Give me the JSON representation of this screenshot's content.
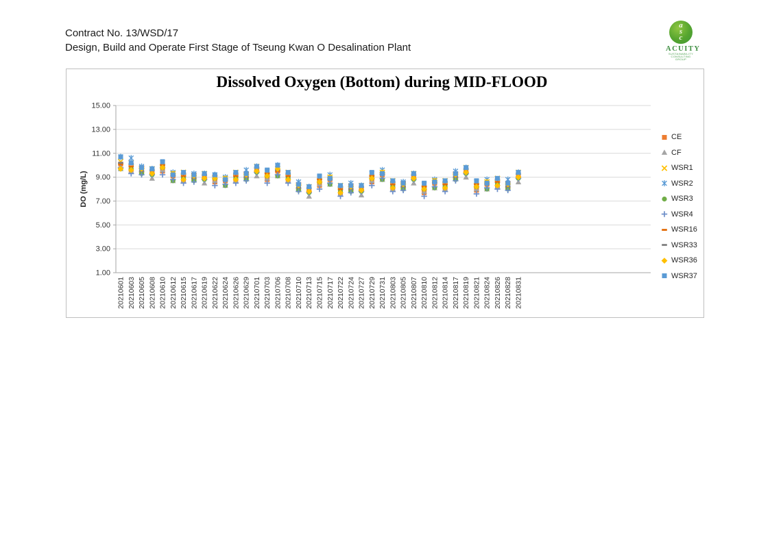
{
  "header": {
    "line1": "Contract No. 13/WSD/17",
    "line2": "Design, Build and Operate First Stage of Tseung Kwan O Desalination Plant"
  },
  "logo": {
    "monogram": "asc",
    "name": "ACUITY",
    "subline1": "SUSTAINABILITY",
    "subline2": "CONSULTING GROUP"
  },
  "chart_data": {
    "type": "scatter",
    "title": "Dissolved Oxygen (Bottom) during MID-FLOOD",
    "xlabel": "",
    "ylabel": "DO (mg/L)",
    "ylim": [
      1,
      15
    ],
    "ytick_labels": [
      "15.00",
      "13.00",
      "11.00",
      "9.00",
      "7.00",
      "5.00",
      "3.00",
      "1.00"
    ],
    "ytick_values": [
      15,
      13,
      11,
      9,
      7,
      5,
      3,
      1
    ],
    "grid": true,
    "legend_position": "right",
    "colors": {
      "grid": "#d9d9d9",
      "axis": "#a6a6a6",
      "box_border": "#bfbfbf",
      "tick_text": "#333333"
    },
    "categories": [
      "20210601",
      "20210603",
      "20210605",
      "20210608",
      "20210610",
      "20210612",
      "20210615",
      "20210617",
      "20210619",
      "20210622",
      "20210624",
      "20210626",
      "20210629",
      "20210701",
      "20210703",
      "20210706",
      "20210708",
      "20210710",
      "20210713",
      "20210715",
      "20210717",
      "20210722",
      "20210724",
      "20210727",
      "20210729",
      "20210731",
      "20210803",
      "20210805",
      "20210807",
      "20210810",
      "20210812",
      "20210814",
      "20210817",
      "20210819",
      "20210821",
      "20210824",
      "20210826",
      "20210828",
      "20210831"
    ],
    "series": [
      {
        "name": "CE",
        "marker": "square",
        "color": "#ED7D31",
        "values": [
          10.1,
          9.6,
          9.5,
          9.5,
          9.5,
          9.1,
          8.8,
          8.9,
          9.1,
          8.6,
          8.7,
          8.8,
          9.0,
          9.7,
          8.8,
          9.5,
          8.8,
          8.1,
          8.0,
          8.3,
          8.8,
          7.7,
          8.0,
          8.1,
          8.6,
          9.2,
          8.1,
          8.2,
          9.1,
          7.7,
          8.5,
          8.1,
          9.0,
          9.6,
          7.9,
          8.4,
          8.3,
          8.2,
          9.2
        ]
      },
      {
        "name": "CF",
        "marker": "triangle",
        "color": "#A5A5A5",
        "values": [
          9.7,
          9.5,
          9.5,
          8.9,
          9.6,
          8.7,
          8.7,
          8.9,
          8.5,
          8.7,
          8.3,
          8.7,
          9.0,
          9.1,
          8.9,
          9.1,
          8.7,
          8.1,
          7.4,
          8.4,
          8.4,
          7.6,
          8.0,
          7.5,
          8.7,
          8.8,
          8.0,
          8.2,
          8.5,
          7.8,
          8.1,
          8.0,
          9.0,
          9.0,
          8.0,
          8.0,
          8.2,
          8.2,
          8.6
        ]
      },
      {
        "name": "WSR1",
        "marker": "x",
        "color": "#FFC000",
        "values": [
          10.3,
          10.2,
          9.6,
          9.7,
          9.9,
          9.3,
          9.4,
          9.0,
          9.3,
          9.0,
          8.9,
          9.4,
          9.1,
          9.9,
          9.2,
          9.7,
          9.4,
          8.2,
          8.2,
          8.7,
          9.0,
          8.3,
          8.1,
          8.3,
          9.0,
          9.4,
          8.7,
          8.3,
          9.3,
          8.1,
          8.7,
          8.7,
          9.1,
          9.8,
          8.3,
          8.6,
          8.9,
          8.3,
          9.4
        ]
      },
      {
        "name": "WSR2",
        "marker": "star",
        "color": "#5B9BD5",
        "values": [
          10.7,
          10.6,
          9.9,
          9.7,
          10.2,
          9.4,
          9.2,
          9.3,
          9.3,
          9.2,
          9.0,
          9.2,
          9.6,
          9.9,
          9.5,
          10.0,
          9.2,
          8.6,
          8.2,
          9.0,
          9.2,
          8.1,
          8.5,
          8.3,
          9.3,
          9.6,
          8.5,
          8.6,
          9.3,
          8.4,
          8.8,
          8.5,
          9.5,
          9.8,
          8.6,
          8.8,
          8.7,
          8.8,
          9.4
        ]
      },
      {
        "name": "WSR3",
        "marker": "circle",
        "color": "#70AD47",
        "values": [
          9.7,
          9.7,
          9.3,
          9.2,
          9.8,
          8.7,
          8.9,
          8.7,
          8.8,
          8.9,
          8.3,
          8.9,
          8.8,
          9.4,
          9.1,
          9.1,
          8.9,
          7.9,
          7.7,
          8.6,
          8.4,
          7.8,
          7.8,
          7.8,
          8.9,
          8.8,
          8.2,
          8.0,
          8.8,
          8.0,
          8.1,
          8.2,
          8.8,
          9.3,
          8.2,
          8.0,
          8.4,
          8.0,
          8.9
        ]
      },
      {
        "name": "WSR4",
        "marker": "plus",
        "color": "#6E8FC9",
        "values": [
          9.8,
          9.3,
          9.2,
          9.2,
          9.2,
          8.8,
          8.5,
          8.6,
          8.8,
          8.3,
          8.4,
          8.5,
          8.7,
          9.4,
          8.5,
          9.2,
          8.5,
          7.8,
          7.7,
          8.0,
          8.5,
          7.4,
          7.7,
          7.8,
          8.3,
          8.9,
          7.8,
          7.9,
          8.8,
          7.4,
          8.2,
          7.8,
          8.7,
          9.3,
          7.6,
          8.1,
          8.0,
          7.9,
          8.9
        ]
      },
      {
        "name": "WSR16",
        "marker": "dash",
        "color": "#E36C09",
        "values": [
          10.1,
          9.9,
          9.9,
          9.3,
          10.0,
          9.1,
          9.1,
          9.3,
          8.9,
          9.1,
          8.7,
          9.1,
          9.4,
          9.5,
          9.3,
          9.5,
          9.1,
          8.5,
          7.8,
          8.8,
          8.8,
          8.0,
          8.4,
          7.9,
          9.1,
          9.2,
          8.4,
          8.6,
          8.9,
          8.2,
          8.5,
          8.4,
          9.4,
          9.4,
          8.4,
          8.4,
          8.6,
          8.6,
          9.0
        ]
      },
      {
        "name": "WSR33",
        "marker": "dash",
        "color": "#808080",
        "values": [
          10.2,
          10.1,
          9.5,
          9.6,
          9.8,
          9.2,
          9.3,
          8.9,
          9.2,
          8.9,
          8.8,
          9.3,
          9.0,
          9.8,
          9.1,
          9.6,
          9.3,
          8.1,
          8.1,
          8.6,
          8.9,
          8.2,
          8.0,
          8.2,
          8.9,
          9.3,
          8.6,
          8.2,
          9.2,
          8.0,
          8.6,
          8.6,
          9.0,
          9.7,
          8.2,
          8.5,
          8.8,
          8.2,
          9.3
        ]
      },
      {
        "name": "WSR36",
        "marker": "diamond",
        "color": "#FFC000",
        "values": [
          9.7,
          9.6,
          9.7,
          9.3,
          9.8,
          9.3,
          8.8,
          9.1,
          8.9,
          8.9,
          8.9,
          8.8,
          9.2,
          9.5,
          9.1,
          9.7,
          8.8,
          8.3,
          7.8,
          8.6,
          9.0,
          7.7,
          8.2,
          7.9,
          8.9,
          9.4,
          8.1,
          8.4,
          8.9,
          8.0,
          8.7,
          8.1,
          9.2,
          9.4,
          8.2,
          8.6,
          8.3,
          8.4,
          9.0
        ]
      },
      {
        "name": "WSR37",
        "marker": "square",
        "color": "#5B9BD5",
        "values": [
          10.7,
          10.2,
          9.8,
          9.7,
          10.3,
          9.2,
          9.4,
          9.2,
          9.3,
          9.2,
          8.8,
          9.4,
          9.3,
          9.9,
          9.6,
          10.0,
          9.4,
          8.4,
          8.2,
          9.1,
          8.9,
          8.3,
          8.3,
          8.3,
          9.4,
          9.3,
          8.7,
          8.5,
          9.3,
          8.5,
          8.6,
          8.7,
          9.3,
          9.8,
          8.7,
          8.5,
          8.9,
          8.5,
          9.4
        ]
      }
    ]
  }
}
